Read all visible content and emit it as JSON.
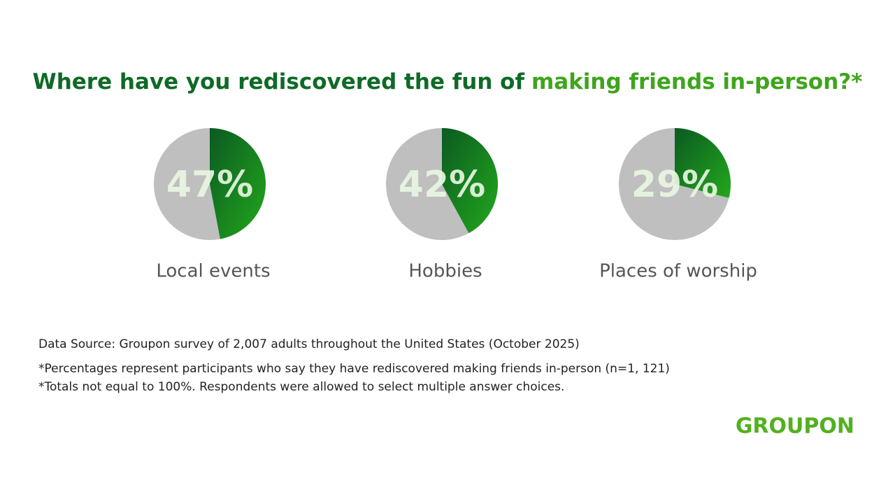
{
  "title": [
    "Where have you rediscovered the fun of",
    "making friends in-person?*"
  ],
  "chart_data": [
    {
      "type": "pie",
      "categories": [
        "Local events"
      ],
      "values": [
        47
      ],
      "value_labels": [
        "47%"
      ],
      "color": "#17921f"
    },
    {
      "type": "pie",
      "categories": [
        "Hobbies"
      ],
      "values": [
        42
      ],
      "value_labels": [
        "42%"
      ],
      "color": "#17921f"
    },
    {
      "type": "pie",
      "categories": [
        "Places of worship"
      ],
      "values": [
        29
      ],
      "value_labels": [
        "29%"
      ],
      "color": "#17921f"
    }
  ],
  "notes": [
    "Data Source: Groupon survey of 2,007 adults throughout the United States (October 2025)",
    "*Percentages represent participants who say they have rediscovered making friends in-person (n=1, 121)",
    "*Totals not equal to 100%. Respondents were allowed to select multiple answer choices."
  ],
  "logo": "GROUPON"
}
